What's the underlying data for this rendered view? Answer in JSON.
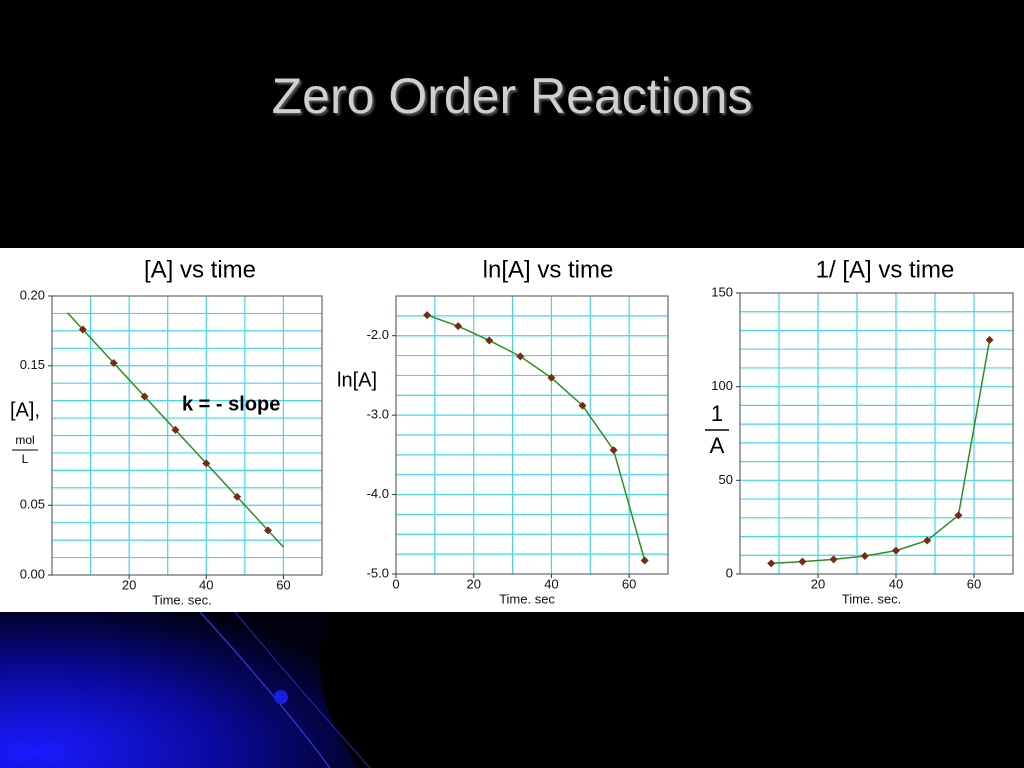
{
  "title": "Zero Order Reactions",
  "chart_data": [
    {
      "type": "scatter",
      "title": "[A]  vs time",
      "xlabel": "Time. sec.",
      "ylabel": "[A],",
      "yunit_numerator": "mol",
      "yunit_denominator": "L",
      "annotation": "k = - slope",
      "x": [
        8,
        16,
        24,
        32,
        40,
        48,
        56
      ],
      "values": [
        0.176,
        0.152,
        0.128,
        0.104,
        0.08,
        0.056,
        0.032
      ],
      "fit": {
        "x": [
          4,
          60
        ],
        "values": [
          0.188,
          0.02
        ]
      },
      "xlim": [
        0,
        70
      ],
      "xticks": [
        20,
        40,
        60
      ],
      "ylim": [
        0,
        0.2
      ],
      "yticks": [
        {
          "value": 0,
          "label": "0.00"
        },
        0.05,
        0.15,
        {
          "value": 0.2,
          "label": "0.20"
        }
      ],
      "grid": true,
      "grid_color": "#45d6ee",
      "marker_color": "#7a2a12",
      "line_color": "#2f8f1f"
    },
    {
      "type": "line",
      "title": "ln[A] vs time",
      "xlabel": "Time. sec",
      "ylabel": "ln[A]",
      "x": [
        8,
        16,
        24,
        32,
        40,
        48,
        56,
        64
      ],
      "values": [
        -1.74,
        -1.88,
        -2.06,
        -2.26,
        -2.53,
        -2.88,
        -3.44,
        -4.83
      ],
      "xlim": [
        0,
        70
      ],
      "xticks": [
        0,
        20,
        40,
        60
      ],
      "ylim": [
        -5,
        -1.5
      ],
      "yticks": [
        {
          "value": -2,
          "label": "-2.0"
        },
        {
          "value": -3,
          "label": "-3.0"
        },
        {
          "value": -4,
          "label": "-4.0"
        },
        {
          "value": -5,
          "label": "-5.0"
        }
      ],
      "grid": true,
      "grid_color": "#45d6ee",
      "marker_color": "#7a2a12",
      "line_color": "#2f8f1f"
    },
    {
      "type": "line",
      "title": "1/ [A] vs time",
      "xlabel": "Time. sec.",
      "ylabel_numerator": "1",
      "ylabel_denominator": "A",
      "x": [
        8,
        16,
        24,
        32,
        40,
        48,
        56,
        64
      ],
      "values": [
        5.7,
        6.6,
        7.8,
        9.6,
        12.5,
        17.9,
        31.3,
        125
      ],
      "xlim": [
        0,
        70
      ],
      "xticks": [
        20,
        40,
        60
      ],
      "ylim": [
        0,
        150
      ],
      "yticks": [
        0,
        50,
        100,
        150
      ],
      "grid": true,
      "grid_color": "#45d6ee",
      "marker_color": "#7a2a12",
      "line_color": "#2f8f1f"
    }
  ]
}
